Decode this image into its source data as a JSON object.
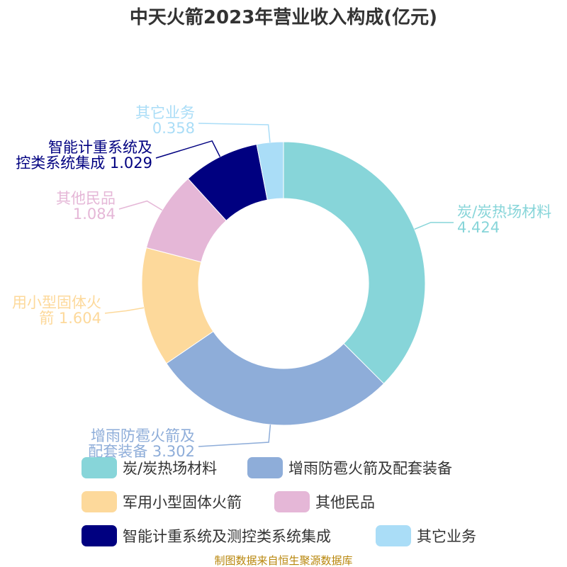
{
  "chart_data": {
    "type": "pie",
    "title": "中天火箭2023年营业收入构成(亿元)",
    "source": "制图数据来自恒生聚源数据库",
    "categories": [
      "炭/炭热场材料",
      "增雨防雹火箭及配套装备",
      "军用小型固体火箭",
      "其他民品",
      "智能计重系统及测控类系统集成",
      "其它业务"
    ],
    "values": [
      4.424,
      3.302,
      1.604,
      1.084,
      1.029,
      0.358
    ],
    "value_labels": [
      "4.424",
      "3.302",
      "1.604",
      "1.084",
      "1.029",
      "0.358"
    ],
    "slice_label_lines": [
      [
        "炭/炭热场材料",
        "4.424"
      ],
      [
        "增雨防雹火箭及",
        "配套装备 3.302"
      ],
      [
        "用小型固体火",
        "箭 1.604"
      ],
      [
        "其他民品",
        "1.084"
      ],
      [
        "智能计重系统及",
        "控类系统集成 1.029"
      ],
      [
        "其它业务",
        "0.358"
      ]
    ],
    "colors": [
      "#87d5d9",
      "#8eadd9",
      "#fdd99b",
      "#e5b7d7",
      "#000080",
      "#aaddf7"
    ],
    "label_colors": [
      "#87d5d9",
      "#8eadd9",
      "#fdd99b",
      "#e5b7d7",
      "#000080",
      "#aaddf7"
    ],
    "legend": {
      "position": "bottom",
      "items": [
        "炭/炭热场材料",
        "增雨防雹火箭及配套装备",
        "军用小型固体火箭",
        "其他民品",
        "智能计重系统及测控类系统集成",
        "其它业务"
      ]
    }
  }
}
